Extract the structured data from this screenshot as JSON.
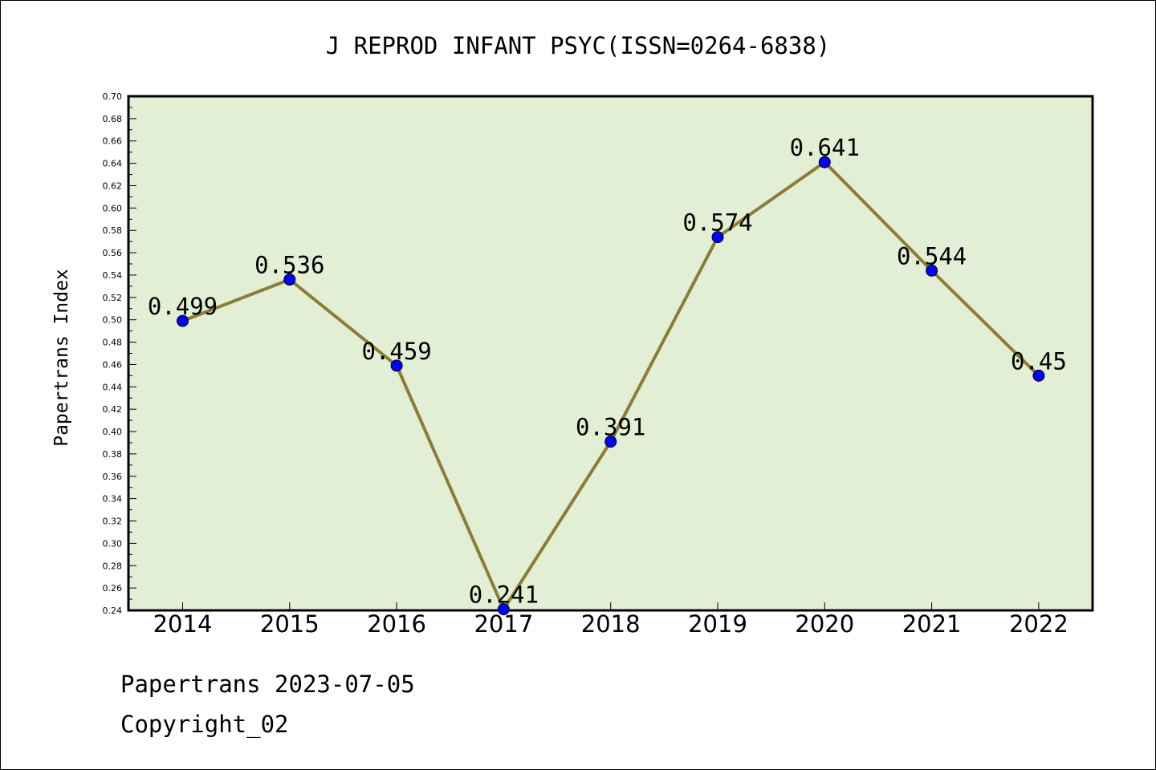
{
  "chart_data": {
    "type": "line",
    "title": "J REPROD INFANT PSYC(ISSN=0264-6838)",
    "xlabel": "",
    "ylabel": "Papertrans Index",
    "categories": [
      "2014",
      "2015",
      "2016",
      "2017",
      "2018",
      "2019",
      "2020",
      "2021",
      "2022"
    ],
    "values": [
      0.499,
      0.536,
      0.459,
      0.241,
      0.391,
      0.574,
      0.641,
      0.544,
      0.45
    ],
    "data_labels": [
      "0.499",
      "0.536",
      "0.459",
      "0.241",
      "0.391",
      "0.574",
      "0.641",
      "0.544",
      "0.45"
    ],
    "ylim": [
      0.24,
      0.7
    ],
    "yticks": [
      "0.24",
      "0.26",
      "0.28",
      "0.30",
      "0.32",
      "0.34",
      "0.36",
      "0.38",
      "0.40",
      "0.42",
      "0.44",
      "0.46",
      "0.48",
      "0.50",
      "0.52",
      "0.54",
      "0.56",
      "0.58",
      "0.60",
      "0.62",
      "0.64",
      "0.66",
      "0.68",
      "0.70"
    ],
    "grid": false,
    "legend": "none",
    "colors": {
      "plot_background": "#e2efd5",
      "line": "#8b7d37",
      "marker": "#0000ff"
    }
  },
  "footer": {
    "line1": "Papertrans 2023-07-05",
    "line2": "Copyright_02"
  }
}
